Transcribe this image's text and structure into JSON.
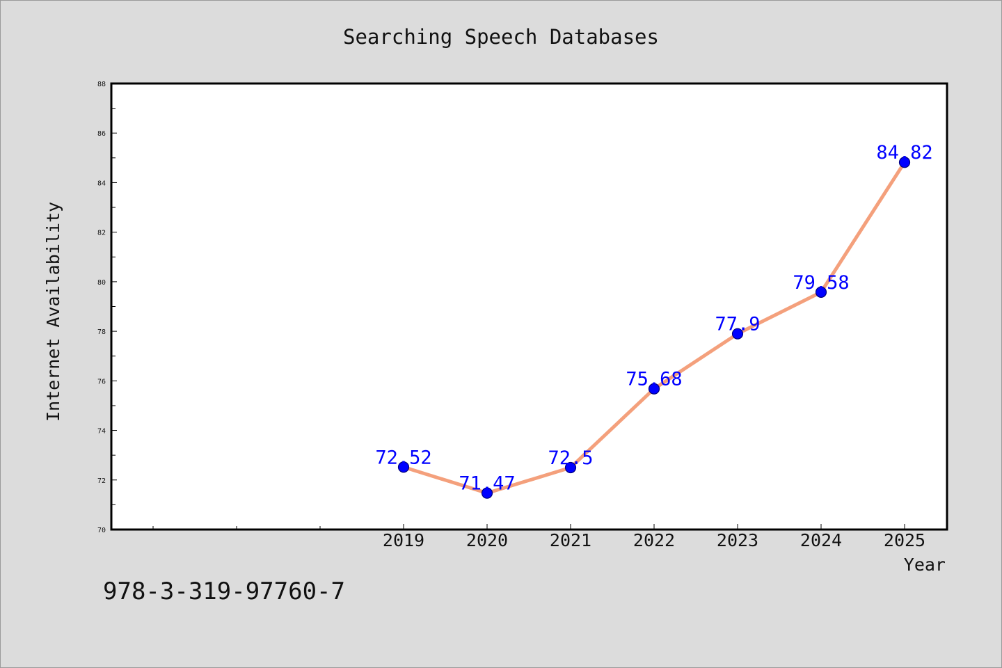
{
  "chart_data": {
    "type": "line",
    "title": "Searching Speech Databases",
    "xlabel": "Year",
    "ylabel": "Internet Availability",
    "categories": [
      "2019",
      "2020",
      "2021",
      "2022",
      "2023",
      "2024",
      "2025"
    ],
    "values": [
      72.52,
      71.47,
      72.5,
      75.68,
      77.9,
      79.58,
      84.82
    ],
    "data_labels": [
      "72.52",
      "71.47",
      "72.5",
      "75.68",
      "77.9",
      "79.58",
      "84.82"
    ],
    "ylim": [
      70,
      88
    ],
    "yticks": [
      "70",
      "72",
      "74",
      "76",
      "78",
      "80",
      "82",
      "84",
      "86",
      "88"
    ],
    "grid": false,
    "colors": {
      "line": "#f4a07c",
      "marker": "#0000ff",
      "marker_edge": "#00007a",
      "data_label": "#0000ff",
      "axis": "#000000",
      "background": "#dcdcdc",
      "plot_background": "#ffffff"
    }
  },
  "annotation": {
    "text": "978-3-319-97760-7"
  }
}
